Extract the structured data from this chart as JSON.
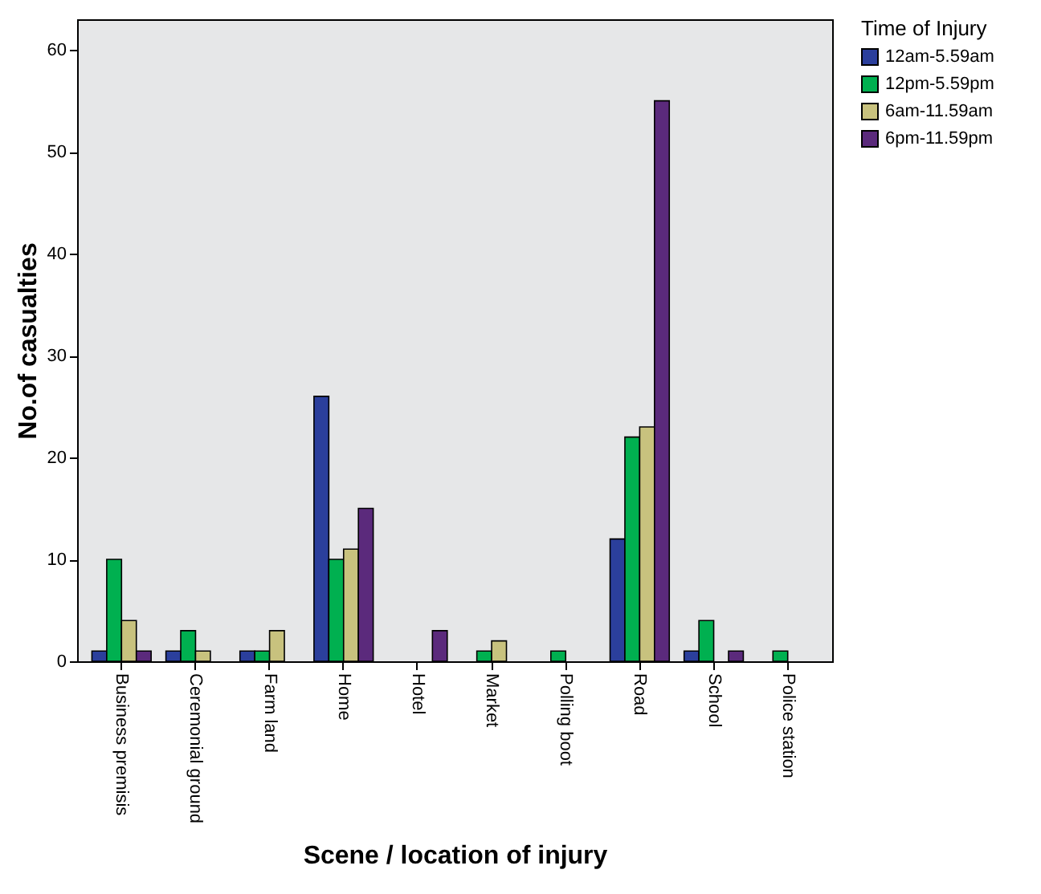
{
  "chart_data": {
    "type": "bar",
    "xlabel": "Scene / location of injury",
    "ylabel": "No.of casualties",
    "legend_title": "Time of Injury",
    "legend": "top right",
    "grid": false,
    "categories": [
      "Business premisis",
      "Ceremonial ground",
      "Farm land",
      "Home",
      "Hotel",
      "Market",
      "Polling boot",
      "Road",
      "School",
      "Police station"
    ],
    "series": [
      {
        "name": "12am-5.59am",
        "color": "#2b3f9c",
        "values": [
          1,
          1,
          1,
          26,
          null,
          null,
          null,
          12,
          1,
          null
        ]
      },
      {
        "name": "12pm-5.59pm",
        "color": "#00b050",
        "values": [
          10,
          3,
          1,
          10,
          null,
          1,
          1,
          22,
          4,
          1
        ]
      },
      {
        "name": "6am-11.59am",
        "color": "#c8c27e",
        "values": [
          4,
          1,
          3,
          11,
          null,
          2,
          null,
          23,
          null,
          null
        ]
      },
      {
        "name": "6pm-11.59pm",
        "color": "#5b2a7c",
        "values": [
          1,
          null,
          null,
          15,
          3,
          null,
          null,
          55,
          1,
          null
        ]
      }
    ],
    "ylim": [
      0,
      63
    ],
    "yticks": [
      0,
      10,
      20,
      30,
      40,
      50,
      60
    ]
  }
}
